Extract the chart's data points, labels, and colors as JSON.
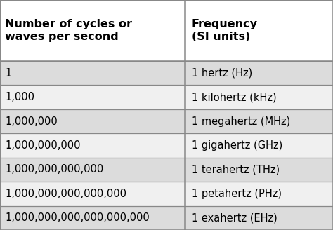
{
  "col1_header": "Number of cycles or\nwaves per second",
  "col2_header": "Frequency\n(SI units)",
  "rows": [
    [
      "1",
      "1 hertz (Hz)"
    ],
    [
      "1,000",
      "1 kilohertz (kHz)"
    ],
    [
      "1,000,000",
      "1 megahertz (MHz)"
    ],
    [
      "1,000,000,000",
      "1 gigahertz (GHz)"
    ],
    [
      "1,000,000,000,000",
      "1 terahertz (THz)"
    ],
    [
      "1,000,000,000,000,000",
      "1 petahertz (PHz)"
    ],
    [
      "1,000,000,000,000,000,000",
      "1 exahertz (EHz)"
    ]
  ],
  "header_bg": "#FFFFFF",
  "row_bg_light": "#DCDCDC",
  "row_bg_white": "#F0F0F0",
  "border_color": "#888888",
  "text_color": "#000000",
  "header_fontsize": 11.5,
  "row_fontsize": 10.5,
  "fig_bg": "#FFFFFF",
  "col_split": 0.555,
  "fig_w": 4.74,
  "fig_h": 3.28,
  "dpi": 100
}
